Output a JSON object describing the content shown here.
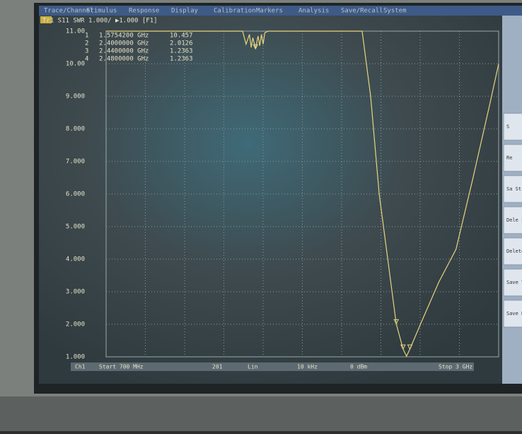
{
  "menu": [
    "Trace/Channel",
    "Stimulus",
    "Response",
    "Display",
    "Calibration",
    "Markers",
    "Analysis",
    "Save/Recall",
    "System"
  ],
  "trace_header": "Tr1 S11 SWR 1.000/ ▶1.000 [F1]",
  "chart_data": {
    "type": "line",
    "x": [
      0.7,
      0.8,
      0.9,
      1.0,
      1.1,
      1.2,
      1.3,
      1.4,
      1.5,
      1.52,
      1.54,
      1.55,
      1.56,
      1.57542,
      1.59,
      1.6,
      1.61,
      1.62,
      1.63,
      1.65,
      1.7,
      1.8,
      1.9,
      2.0,
      2.1,
      2.2,
      2.25,
      2.3,
      2.35,
      2.4,
      2.44,
      2.46,
      2.48,
      2.55,
      2.65,
      2.75,
      2.85,
      2.95,
      3.0
    ],
    "color": "#e8d47e",
    "values": [
      11,
      11,
      11,
      11,
      11,
      11,
      11,
      11,
      11,
      10.6,
      10.9,
      10.5,
      10.8,
      10.457,
      10.85,
      10.55,
      10.9,
      10.6,
      10.95,
      11,
      11,
      11,
      11,
      11,
      11,
      11,
      9.0,
      6.0,
      4.0,
      2.0126,
      1.2363,
      1.02,
      1.2363,
      2.1,
      3.3,
      4.3,
      6.5,
      8.8,
      10.0
    ],
    "xlim": [
      0.7,
      3.0
    ],
    "ylim": [
      1,
      11
    ],
    "yticks": [
      {
        "value": 1,
        "label": "1.000"
      },
      {
        "value": 2,
        "label": "2.000"
      },
      {
        "value": 3,
        "label": "3.000"
      },
      {
        "value": 4,
        "label": "4.000"
      },
      {
        "value": 5,
        "label": "5.000"
      },
      {
        "value": 6,
        "label": "6.000"
      },
      {
        "value": 7,
        "label": "7.000"
      },
      {
        "value": 8,
        "label": "8.000"
      },
      {
        "value": 9,
        "label": "9.000"
      },
      {
        "value": 10,
        "label": "10.00"
      },
      {
        "value": 11,
        "label": "11.00"
      }
    ],
    "grid": true,
    "markers": [
      {
        "id": "1",
        "x": {
          "value": 1.57542,
          "label": "1.5754200 GHz"
        },
        "y": 10.457
      },
      {
        "id": "2",
        "x": {
          "value": 2.4,
          "label": "2.4000000 GHz"
        },
        "y": 2.0126
      },
      {
        "id": "3",
        "x": {
          "value": 2.44,
          "label": "2.4400000 GHz"
        },
        "y": 1.2363
      },
      {
        "id": "4",
        "x": {
          "value": 2.48,
          "label": "2.4800000 GHz"
        },
        "y": 1.2363
      }
    ]
  },
  "softkeys": [
    "S",
    "Re",
    "Sa St",
    "Dele F",
    "Delete Fi",
    "Save Tra",
    "Save Dat Touchston"
  ],
  "status": [
    "Ch1",
    "Start 700 MHz",
    "201",
    "Lin",
    "10 kHz",
    "0 dBm",
    "Stop 3 GHz"
  ]
}
